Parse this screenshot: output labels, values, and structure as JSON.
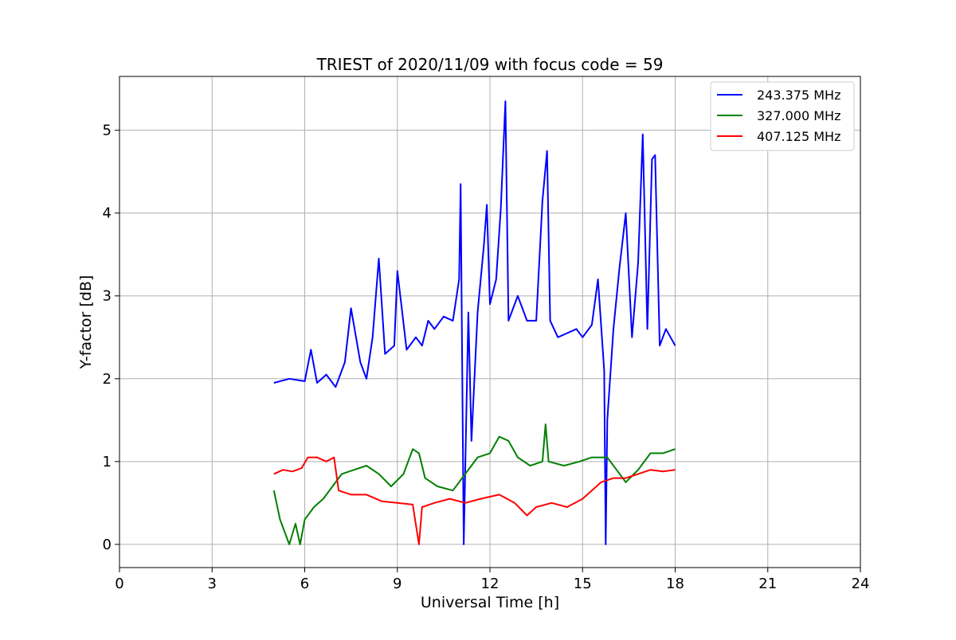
{
  "chart_data": {
    "type": "line",
    "title": "TRIEST of 2020/11/09 with focus code = 59",
    "xlabel": "Universal Time [h]",
    "ylabel": "Y-factor [dB]",
    "xlim": [
      0,
      24
    ],
    "ylim": [
      -0.28,
      5.65
    ],
    "xticks": [
      0,
      3,
      6,
      9,
      12,
      15,
      18,
      21,
      24
    ],
    "yticks": [
      0,
      1,
      2,
      3,
      4,
      5
    ],
    "grid": true,
    "legend_position": "top-right",
    "series": [
      {
        "name": "243.375 MHz",
        "color": "#0000ff",
        "points": [
          [
            5.0,
            1.95
          ],
          [
            5.5,
            2.0
          ],
          [
            6.0,
            1.97
          ],
          [
            6.2,
            2.35
          ],
          [
            6.4,
            1.95
          ],
          [
            6.7,
            2.05
          ],
          [
            7.0,
            1.9
          ],
          [
            7.3,
            2.2
          ],
          [
            7.5,
            2.85
          ],
          [
            7.8,
            2.2
          ],
          [
            8.0,
            2.0
          ],
          [
            8.2,
            2.5
          ],
          [
            8.4,
            3.45
          ],
          [
            8.6,
            2.3
          ],
          [
            8.9,
            2.4
          ],
          [
            9.0,
            3.3
          ],
          [
            9.3,
            2.35
          ],
          [
            9.6,
            2.5
          ],
          [
            9.8,
            2.4
          ],
          [
            10.0,
            2.7
          ],
          [
            10.2,
            2.6
          ],
          [
            10.5,
            2.75
          ],
          [
            10.8,
            2.7
          ],
          [
            11.0,
            3.2
          ],
          [
            11.05,
            4.35
          ],
          [
            11.15,
            0.0
          ],
          [
            11.3,
            2.8
          ],
          [
            11.4,
            1.25
          ],
          [
            11.6,
            2.8
          ],
          [
            11.8,
            3.6
          ],
          [
            11.9,
            4.1
          ],
          [
            12.0,
            2.9
          ],
          [
            12.2,
            3.2
          ],
          [
            12.35,
            4.05
          ],
          [
            12.5,
            5.35
          ],
          [
            12.6,
            2.7
          ],
          [
            12.9,
            3.0
          ],
          [
            13.2,
            2.7
          ],
          [
            13.5,
            2.7
          ],
          [
            13.7,
            4.15
          ],
          [
            13.85,
            4.75
          ],
          [
            13.95,
            2.7
          ],
          [
            14.2,
            2.5
          ],
          [
            14.5,
            2.55
          ],
          [
            14.8,
            2.6
          ],
          [
            15.0,
            2.5
          ],
          [
            15.3,
            2.65
          ],
          [
            15.5,
            3.2
          ],
          [
            15.7,
            2.1
          ],
          [
            15.75,
            0.0
          ],
          [
            15.8,
            1.5
          ],
          [
            16.0,
            2.6
          ],
          [
            16.2,
            3.35
          ],
          [
            16.4,
            4.0
          ],
          [
            16.6,
            2.5
          ],
          [
            16.8,
            3.4
          ],
          [
            16.95,
            4.95
          ],
          [
            17.1,
            2.6
          ],
          [
            17.25,
            4.65
          ],
          [
            17.35,
            4.7
          ],
          [
            17.5,
            2.4
          ],
          [
            17.7,
            2.6
          ],
          [
            18.0,
            2.4
          ]
        ]
      },
      {
        "name": "327.000 MHz",
        "color": "#008000",
        "points": [
          [
            5.0,
            0.65
          ],
          [
            5.2,
            0.3
          ],
          [
            5.4,
            0.1
          ],
          [
            5.5,
            0.0
          ],
          [
            5.7,
            0.25
          ],
          [
            5.85,
            0.0
          ],
          [
            6.0,
            0.3
          ],
          [
            6.3,
            0.45
          ],
          [
            6.6,
            0.55
          ],
          [
            6.9,
            0.7
          ],
          [
            7.2,
            0.85
          ],
          [
            7.6,
            0.9
          ],
          [
            8.0,
            0.95
          ],
          [
            8.4,
            0.85
          ],
          [
            8.8,
            0.7
          ],
          [
            9.2,
            0.85
          ],
          [
            9.5,
            1.15
          ],
          [
            9.7,
            1.1
          ],
          [
            9.9,
            0.8
          ],
          [
            10.3,
            0.7
          ],
          [
            10.8,
            0.65
          ],
          [
            11.2,
            0.85
          ],
          [
            11.6,
            1.05
          ],
          [
            12.0,
            1.1
          ],
          [
            12.3,
            1.3
          ],
          [
            12.6,
            1.25
          ],
          [
            12.9,
            1.05
          ],
          [
            13.3,
            0.95
          ],
          [
            13.7,
            1.0
          ],
          [
            13.8,
            1.45
          ],
          [
            13.9,
            1.0
          ],
          [
            14.4,
            0.95
          ],
          [
            14.9,
            1.0
          ],
          [
            15.3,
            1.05
          ],
          [
            15.8,
            1.05
          ],
          [
            16.1,
            0.9
          ],
          [
            16.4,
            0.75
          ],
          [
            16.8,
            0.9
          ],
          [
            17.2,
            1.1
          ],
          [
            17.6,
            1.1
          ],
          [
            18.0,
            1.15
          ]
        ]
      },
      {
        "name": "407.125 MHz",
        "color": "#ff0000",
        "points": [
          [
            5.0,
            0.85
          ],
          [
            5.3,
            0.9
          ],
          [
            5.6,
            0.88
          ],
          [
            5.9,
            0.92
          ],
          [
            6.1,
            1.05
          ],
          [
            6.4,
            1.05
          ],
          [
            6.7,
            1.0
          ],
          [
            6.95,
            1.05
          ],
          [
            7.1,
            0.65
          ],
          [
            7.5,
            0.6
          ],
          [
            8.0,
            0.6
          ],
          [
            8.5,
            0.52
          ],
          [
            9.0,
            0.5
          ],
          [
            9.5,
            0.48
          ],
          [
            9.7,
            0.0
          ],
          [
            9.8,
            0.45
          ],
          [
            10.2,
            0.5
          ],
          [
            10.7,
            0.55
          ],
          [
            11.2,
            0.5
          ],
          [
            11.7,
            0.55
          ],
          [
            12.3,
            0.6
          ],
          [
            12.8,
            0.5
          ],
          [
            13.2,
            0.35
          ],
          [
            13.5,
            0.45
          ],
          [
            14.0,
            0.5
          ],
          [
            14.5,
            0.45
          ],
          [
            15.0,
            0.55
          ],
          [
            15.3,
            0.65
          ],
          [
            15.6,
            0.75
          ],
          [
            16.0,
            0.8
          ],
          [
            16.4,
            0.8
          ],
          [
            16.8,
            0.85
          ],
          [
            17.2,
            0.9
          ],
          [
            17.6,
            0.88
          ],
          [
            18.0,
            0.9
          ]
        ]
      }
    ]
  }
}
